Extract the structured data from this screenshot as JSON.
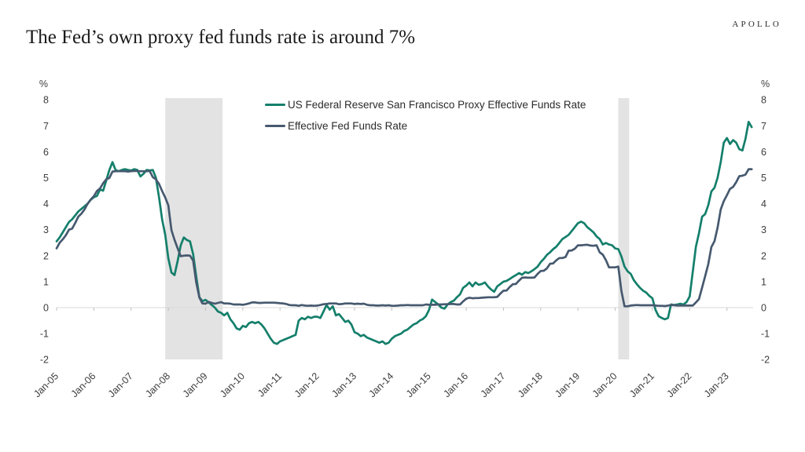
{
  "logo": "APOLLO",
  "title": "The Fed’s own proxy fed funds rate is around 7%",
  "axis": {
    "left_unit": "%",
    "right_unit": "%",
    "y_ticks": [
      8,
      7,
      6,
      5,
      4,
      3,
      2,
      1,
      0,
      -1,
      -2
    ],
    "x_ticks": [
      "Jan-05",
      "Jan-06",
      "Jan-07",
      "Jan-08",
      "Jan-09",
      "Jan-10",
      "Jan-11",
      "Jan-12",
      "Jan-13",
      "Jan-14",
      "Jan-15",
      "Jan-16",
      "Jan-17",
      "Jan-18",
      "Jan-19",
      "Jan-20",
      "Jan-21",
      "Jan-22",
      "Jan-23"
    ]
  },
  "legend": [
    {
      "label": "US Federal Reserve San Francisco Proxy Effective Funds Rate",
      "color": "#147f6b"
    },
    {
      "label": "Effective Fed Funds Rate",
      "color": "#46596f"
    }
  ],
  "colors": {
    "proxy_line": "#147f6b",
    "effr_line": "#46596f",
    "recession_band": "#e3e3e3",
    "zero_line": "#d8d8d8",
    "axis_tick": "#c0c0c0",
    "axis_text": "#3d3d3d"
  },
  "chart_data": {
    "type": "line",
    "title": "The Fed’s own proxy fed funds rate is around 7%",
    "x_unit": "monthly",
    "x_start": "Jan-2005",
    "x_end": "Sep-2023",
    "categories": [
      "Jan-05",
      "Jan-06",
      "Jan-07",
      "Jan-08",
      "Jan-09",
      "Jan-10",
      "Jan-11",
      "Jan-12",
      "Jan-13",
      "Jan-14",
      "Jan-15",
      "Jan-16",
      "Jan-17",
      "Jan-18",
      "Jan-19",
      "Jan-20",
      "Jan-21",
      "Jan-22",
      "Jan-23"
    ],
    "ylabel": "%",
    "ylim": [
      -2,
      8
    ],
    "grid": "zero-line-only",
    "legend_position": "top-center-inside",
    "recession_bands_months": [
      [
        35,
        53.5
      ],
      [
        181,
        184.5
      ]
    ],
    "series": [
      {
        "name": "US Federal Reserve San Francisco Proxy Effective Funds Rate",
        "color": "#147f6b",
        "values": [
          2.55,
          2.7,
          2.9,
          3.1,
          3.3,
          3.4,
          3.55,
          3.7,
          3.8,
          3.9,
          4.0,
          4.15,
          4.25,
          4.3,
          4.55,
          4.5,
          4.9,
          5.3,
          5.6,
          5.3,
          5.25,
          5.3,
          5.33,
          5.3,
          5.28,
          5.33,
          5.3,
          5.05,
          5.15,
          5.3,
          5.28,
          5.3,
          5.0,
          4.25,
          3.4,
          2.8,
          1.9,
          1.35,
          1.25,
          1.8,
          2.4,
          2.7,
          2.6,
          2.55,
          2.05,
          1.2,
          0.4,
          0.25,
          0.3,
          0.2,
          0.1,
          0.0,
          -0.15,
          -0.2,
          -0.3,
          -0.2,
          -0.45,
          -0.6,
          -0.8,
          -0.85,
          -0.7,
          -0.75,
          -0.6,
          -0.55,
          -0.6,
          -0.55,
          -0.65,
          -0.8,
          -1.0,
          -1.2,
          -1.35,
          -1.4,
          -1.3,
          -1.25,
          -1.2,
          -1.15,
          -1.1,
          -1.05,
          -0.5,
          -0.4,
          -0.45,
          -0.35,
          -0.4,
          -0.35,
          -0.35,
          -0.4,
          -0.15,
          0.1,
          -0.08,
          0.05,
          -0.3,
          -0.25,
          -0.4,
          -0.55,
          -0.5,
          -0.65,
          -0.95,
          -1.0,
          -1.1,
          -1.05,
          -1.15,
          -1.2,
          -1.25,
          -1.3,
          -1.35,
          -1.3,
          -1.4,
          -1.35,
          -1.2,
          -1.1,
          -1.05,
          -1.0,
          -0.9,
          -0.85,
          -0.75,
          -0.65,
          -0.6,
          -0.5,
          -0.44,
          -0.33,
          -0.09,
          0.31,
          0.21,
          0.12,
          0.0,
          -0.04,
          0.12,
          0.21,
          0.27,
          0.4,
          0.51,
          0.76,
          0.85,
          0.97,
          0.82,
          0.97,
          0.88,
          0.91,
          0.97,
          0.82,
          0.7,
          0.61,
          0.82,
          0.91,
          1.0,
          1.03,
          1.1,
          1.18,
          1.25,
          1.33,
          1.27,
          1.37,
          1.33,
          1.4,
          1.48,
          1.58,
          1.75,
          1.88,
          2.03,
          2.13,
          2.25,
          2.34,
          2.49,
          2.64,
          2.72,
          2.8,
          2.95,
          3.1,
          3.25,
          3.31,
          3.25,
          3.1,
          3.0,
          2.9,
          2.74,
          2.64,
          2.43,
          2.49,
          2.43,
          2.4,
          2.28,
          2.25,
          1.98,
          1.58,
          1.4,
          1.3,
          1.06,
          0.9,
          0.76,
          0.65,
          0.58,
          0.45,
          0.36,
          -0.09,
          -0.33,
          -0.4,
          -0.45,
          -0.4,
          0.12,
          0.1,
          0.12,
          0.15,
          0.12,
          0.21,
          0.43,
          1.37,
          2.34,
          2.86,
          3.5,
          3.6,
          3.95,
          4.47,
          4.62,
          5.0,
          5.6,
          6.35,
          6.53,
          6.3,
          6.45,
          6.35,
          6.1,
          6.05,
          6.5,
          7.15,
          6.95
        ]
      },
      {
        "name": "Effective Fed Funds Rate",
        "color": "#46596f",
        "values": [
          2.28,
          2.5,
          2.63,
          2.79,
          3.0,
          3.04,
          3.26,
          3.5,
          3.62,
          3.78,
          4.0,
          4.16,
          4.29,
          4.49,
          4.59,
          4.79,
          4.94,
          4.99,
          5.24,
          5.25,
          5.25,
          5.25,
          5.25,
          5.24,
          5.25,
          5.26,
          5.26,
          5.25,
          5.25,
          5.25,
          5.26,
          5.02,
          4.94,
          4.76,
          4.49,
          4.24,
          3.94,
          2.98,
          2.61,
          2.28,
          1.98,
          2.0,
          2.01,
          2.0,
          1.81,
          0.97,
          0.39,
          0.16,
          0.15,
          0.22,
          0.18,
          0.15,
          0.18,
          0.21,
          0.16,
          0.16,
          0.15,
          0.12,
          0.12,
          0.12,
          0.11,
          0.13,
          0.16,
          0.2,
          0.2,
          0.18,
          0.18,
          0.19,
          0.19,
          0.19,
          0.19,
          0.18,
          0.17,
          0.16,
          0.14,
          0.1,
          0.09,
          0.09,
          0.07,
          0.1,
          0.08,
          0.07,
          0.08,
          0.07,
          0.08,
          0.1,
          0.13,
          0.14,
          0.16,
          0.16,
          0.16,
          0.13,
          0.14,
          0.16,
          0.16,
          0.16,
          0.14,
          0.15,
          0.14,
          0.15,
          0.11,
          0.09,
          0.09,
          0.08,
          0.08,
          0.09,
          0.08,
          0.09,
          0.07,
          0.07,
          0.08,
          0.09,
          0.09,
          0.1,
          0.09,
          0.09,
          0.09,
          0.09,
          0.09,
          0.12,
          0.11,
          0.11,
          0.11,
          0.12,
          0.12,
          0.13,
          0.13,
          0.14,
          0.14,
          0.12,
          0.12,
          0.24,
          0.34,
          0.38,
          0.36,
          0.37,
          0.37,
          0.38,
          0.39,
          0.4,
          0.4,
          0.4,
          0.41,
          0.54,
          0.65,
          0.66,
          0.79,
          0.9,
          0.91,
          1.04,
          1.15,
          1.16,
          1.15,
          1.15,
          1.16,
          1.3,
          1.41,
          1.42,
          1.51,
          1.69,
          1.7,
          1.82,
          1.91,
          1.91,
          1.95,
          2.19,
          2.2,
          2.27,
          2.4,
          2.4,
          2.41,
          2.42,
          2.39,
          2.38,
          2.4,
          2.13,
          2.04,
          1.83,
          1.55,
          1.55,
          1.55,
          1.58,
          0.65,
          0.05,
          0.05,
          0.08,
          0.09,
          0.1,
          0.09,
          0.09,
          0.09,
          0.09,
          0.09,
          0.08,
          0.07,
          0.07,
          0.06,
          0.08,
          0.1,
          0.09,
          0.08,
          0.08,
          0.08,
          0.08,
          0.08,
          0.08,
          0.2,
          0.33,
          0.77,
          1.21,
          1.68,
          2.33,
          2.56,
          3.08,
          3.78,
          4.1,
          4.33,
          4.57,
          4.65,
          4.83,
          5.06,
          5.08,
          5.12,
          5.33,
          5.33
        ]
      }
    ]
  }
}
